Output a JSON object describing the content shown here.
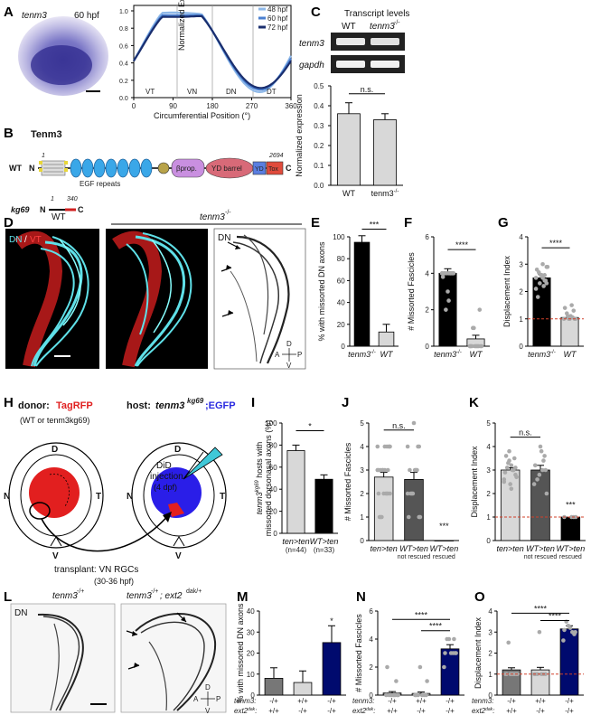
{
  "panels": {
    "A": "A",
    "B": "B",
    "C": "C",
    "D": "D",
    "E": "E",
    "F": "F",
    "G": "G",
    "H": "H",
    "I": "I",
    "J": "J",
    "K": "K",
    "L": "L",
    "M": "M",
    "N": "N",
    "O": "O"
  },
  "A": {
    "image_label": "tenm3",
    "image_stage": "60 hpf",
    "chart": {
      "ylabel": "Normalized Expression",
      "xlabel": "Circumferential Position (°)",
      "xticks": [
        "0",
        "90",
        "180",
        "270",
        "360"
      ],
      "yticks": [
        "0.0",
        "0.2",
        "0.4",
        "0.6",
        "0.8",
        "1.0"
      ],
      "regions": [
        "VT",
        "VN",
        "DN",
        "DT"
      ],
      "series_names": [
        "48 hpf",
        "60 hpf",
        "72 hpf"
      ],
      "colors": [
        "#8eb8e8",
        "#4a7fd0",
        "#1a2e6e"
      ]
    }
  },
  "B": {
    "protein": "Tenm3",
    "wt": "WT",
    "n": "N",
    "c": "C",
    "one": "1",
    "end": "2694",
    "domains": [
      "βprop.",
      "YD barrel",
      "YD",
      "Tox"
    ],
    "egf": "EGF repeats",
    "allele": "kg69",
    "allele_end": "340"
  },
  "C": {
    "title": "Transcript levels",
    "wt": "WT",
    "mut": "tenm3",
    "mut_sup": "-/-",
    "gene1": "tenm3",
    "gene2": "gapdh",
    "ylabel": "Normalized expression",
    "sig": "n.s.",
    "yticks": [
      "0.0",
      "0.1",
      "0.2",
      "0.3",
      "0.4",
      "0.5"
    ],
    "labels": [
      "WT",
      "tenm3"
    ]
  },
  "D": {
    "wt": "WT",
    "mut": "tenm3",
    "mut_sup": "-/-",
    "dn": "DN",
    "slash": "/",
    "vt": "VT",
    "dn2": "DN",
    "compass": {
      "d": "D",
      "v": "V",
      "a": "A",
      "p": "P"
    }
  },
  "E": {
    "ylabel": "% with missorted DN axons",
    "sig": "***",
    "yticks": [
      "0",
      "20",
      "40",
      "60",
      "80",
      "100"
    ],
    "labels": [
      "tenm3",
      "WT"
    ]
  },
  "F": {
    "ylabel": "# Missorted Fascicles",
    "sig": "****",
    "yticks": [
      "0",
      "2",
      "4",
      "6"
    ],
    "labels": [
      "tenm3",
      "WT"
    ]
  },
  "G": {
    "ylabel": "Displacement Index",
    "sig": "****",
    "yticks": [
      "0",
      "1",
      "2",
      "3",
      "4"
    ],
    "labels": [
      "tenm3",
      "WT"
    ]
  },
  "H": {
    "donor": "donor:",
    "donor_marker": "TagRFP",
    "donor_note": "(WT or tenm3kg69)",
    "host": "host:",
    "host_gene": "tenm3",
    "host_sup": "kg69",
    "host_marker": ";EGFP",
    "did1": "DiD",
    "did2": "injection",
    "did3": "(4 dpf)",
    "dirs": {
      "d": "D",
      "n": "N",
      "t": "T",
      "v": "V"
    },
    "transplant1": "transplant: VN RGCs",
    "transplant2": "(30-36 hpf)"
  },
  "I": {
    "ylabel1": "tenm3",
    "ylabel_sup": "kg69",
    "ylabel2": " hosts with",
    "ylabel3": "missorted dorsonasal axons (%)",
    "sig": "*",
    "yticks": [
      "0",
      "20",
      "40",
      "60",
      "80",
      "100"
    ],
    "labels": [
      "ten>ten",
      "WT>ten"
    ],
    "ns": [
      "(n=44)",
      "(n=33)"
    ]
  },
  "J": {
    "ylabel": "# Missorted Fascicles",
    "sig": "n.s.",
    "sig2": "***",
    "yticks": [
      "0",
      "1",
      "2",
      "3",
      "4",
      "5"
    ],
    "labels": [
      "ten>ten",
      "WT>ten",
      "WT>ten"
    ],
    "sublabels": [
      "",
      "not rescued",
      "rescued"
    ]
  },
  "K": {
    "ylabel": "Displacement Index",
    "sig": "n.s.",
    "sig2": "***",
    "yticks": [
      "0",
      "1",
      "2",
      "3",
      "4",
      "5"
    ],
    "labels": [
      "ten>ten",
      "WT>ten",
      "WT>ten"
    ],
    "sublabels": [
      "",
      "not rescued",
      "rescued"
    ]
  },
  "L": {
    "left_title": "tenm3",
    "left_sup": "-/+",
    "right_title": "tenm3",
    "right_sup": "-/+",
    "right_title2": "; ext2",
    "right_sup2": "dak/+",
    "dn": "DN",
    "compass": {
      "d": "D",
      "v": "V",
      "a": "A",
      "p": "P"
    }
  },
  "M": {
    "ylabel": "% with missorted DN axons",
    "sig": "*",
    "yticks": [
      "0",
      "10",
      "20",
      "30",
      "40"
    ]
  },
  "N": {
    "ylabel": "# Missorted Fascicles",
    "sig": "****",
    "yticks": [
      "0",
      "2",
      "4",
      "6"
    ]
  },
  "O": {
    "ylabel": "Displacement Index",
    "sig": "****",
    "yticks": [
      "0",
      "1",
      "2",
      "3",
      "4"
    ]
  },
  "genotype": {
    "row1": "tenm3:",
    "row2": "ext2",
    "row2_sup": "dak",
    "row2_end": ":",
    "tenm3_vals": [
      "-/+",
      "+/+",
      "-/+"
    ],
    "ext2_vals": [
      "+/+",
      "-/+",
      "-/+"
    ]
  },
  "chart_data": [
    {
      "panel": "C",
      "type": "bar",
      "categories": [
        "WT",
        "tenm3-/-"
      ],
      "values": [
        0.36,
        0.33
      ],
      "ylim": [
        0,
        0.5
      ]
    },
    {
      "panel": "E",
      "type": "bar",
      "categories": [
        "tenm3-/-",
        "WT"
      ],
      "values": [
        95,
        13
      ],
      "ylim": [
        0,
        100
      ]
    },
    {
      "panel": "F",
      "type": "bar",
      "categories": [
        "tenm3-/-",
        "WT"
      ],
      "values": [
        4.0,
        0.4
      ],
      "ylim": [
        0,
        6
      ]
    },
    {
      "panel": "G",
      "type": "bar",
      "categories": [
        "tenm3-/-",
        "WT"
      ],
      "values": [
        2.5,
        1.05
      ],
      "ylim": [
        0,
        4
      ]
    },
    {
      "panel": "I",
      "type": "bar",
      "categories": [
        "ten>ten",
        "WT>ten"
      ],
      "values": [
        75,
        49
      ],
      "ylim": [
        0,
        100
      ]
    },
    {
      "panel": "J",
      "type": "bar",
      "categories": [
        "ten>ten",
        "WT>ten not rescued",
        "WT>ten rescued"
      ],
      "values": [
        2.7,
        2.6,
        0
      ],
      "ylim": [
        0,
        5
      ]
    },
    {
      "panel": "K",
      "type": "bar",
      "categories": [
        "ten>ten",
        "WT>ten not rescued",
        "WT>ten rescued"
      ],
      "values": [
        3.0,
        3.0,
        1.0
      ],
      "ylim": [
        0,
        5
      ]
    },
    {
      "panel": "M",
      "type": "bar",
      "categories": [
        "-/+;+/+",
        "+/+;-/+",
        "-/+;-/+"
      ],
      "values": [
        8,
        6,
        25
      ],
      "ylim": [
        0,
        40
      ]
    },
    {
      "panel": "N",
      "type": "bar",
      "categories": [
        "-/+;+/+",
        "+/+;-/+",
        "-/+;-/+"
      ],
      "values": [
        0.15,
        0.12,
        3.3
      ],
      "ylim": [
        0,
        6
      ]
    },
    {
      "panel": "O",
      "type": "bar",
      "categories": [
        "-/+;+/+",
        "+/+;-/+",
        "-/+;-/+"
      ],
      "values": [
        1.2,
        1.2,
        3.15
      ],
      "ylim": [
        0,
        4
      ]
    }
  ]
}
